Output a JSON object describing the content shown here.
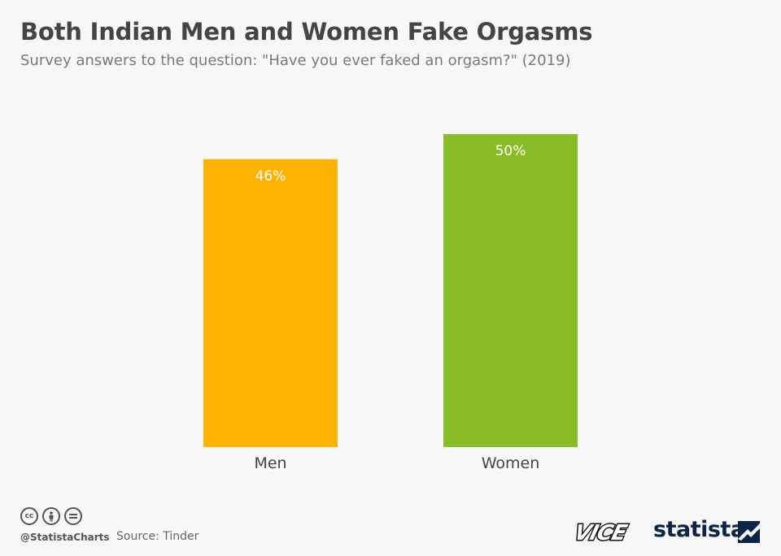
{
  "header": {
    "title": "Both Indian Men and Women Fake Orgasms",
    "subtitle": "Survey answers to the question: \"Have you ever faked an orgasm?\" (2019)"
  },
  "chart_data": {
    "type": "bar",
    "categories": [
      "Men",
      "Women"
    ],
    "values": [
      46,
      50
    ],
    "value_labels": [
      "46%",
      "50%"
    ],
    "colors": [
      "#ffb300",
      "#89bc26"
    ],
    "title": "Both Indian Men and Women Fake Orgasms",
    "xlabel": "",
    "ylabel": "",
    "ylim": [
      0,
      50
    ],
    "grid": false
  },
  "footer": {
    "handle": "@StatistaCharts",
    "source": "Source: Tinder",
    "license_icons": [
      "cc-icon",
      "by-icon",
      "nd-icon"
    ],
    "logos": {
      "partner": "VICE",
      "brand": "statista"
    }
  },
  "colors": {
    "background": "#f7f7f7",
    "title": "#444444",
    "subtitle": "#7a7a7a",
    "brand": "#0b2545"
  }
}
